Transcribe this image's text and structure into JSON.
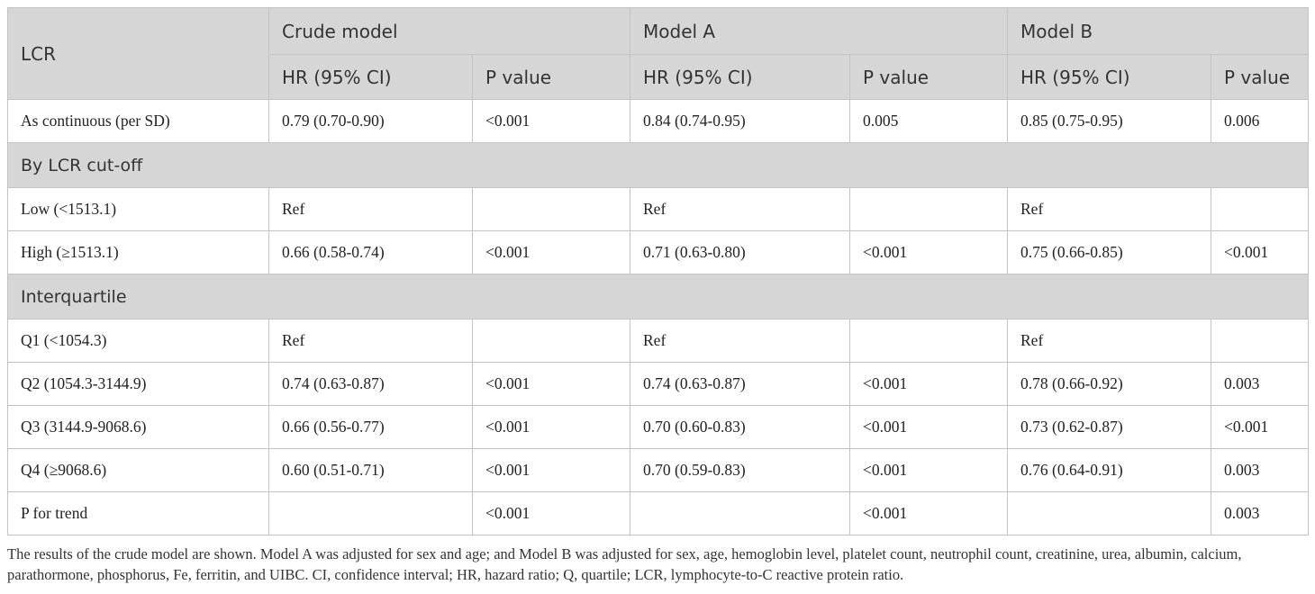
{
  "table": {
    "header": {
      "row1": [
        "LCR",
        "Crude model",
        "Model A",
        "Model B"
      ],
      "row2": [
        "HR (95% CI)",
        "P value",
        "HR (95% CI)",
        "P value",
        "HR (95% CI)",
        "P value"
      ]
    },
    "rows": [
      {
        "cells": [
          "As continuous (per SD)",
          "0.79 (0.70-0.90)",
          "<0.001",
          "0.84 (0.74-0.95)",
          "0.005",
          "0.85 (0.75-0.95)",
          "0.006"
        ]
      },
      {
        "section": "By LCR cut-off"
      },
      {
        "cells": [
          "Low (<1513.1)",
          "Ref",
          null,
          "Ref",
          null,
          "Ref",
          null
        ]
      },
      {
        "cells": [
          "High (≥1513.1)",
          "0.66 (0.58-0.74)",
          "<0.001",
          "0.71 (0.63-0.80)",
          "<0.001",
          "0.75 (0.66-0.85)",
          "<0.001"
        ]
      },
      {
        "section": "Interquartile"
      },
      {
        "cells": [
          "Q1 (<1054.3)",
          "Ref",
          null,
          "Ref",
          null,
          "Ref",
          null
        ]
      },
      {
        "cells": [
          "Q2 (1054.3-3144.9)",
          "0.74 (0.63-0.87)",
          "<0.001",
          "0.74 (0.63-0.87)",
          "<0.001",
          "0.78 (0.66-0.92)",
          "0.003"
        ]
      },
      {
        "cells": [
          "Q3 (3144.9-9068.6)",
          "0.66 (0.56-0.77)",
          "<0.001",
          "0.70 (0.60-0.83)",
          "<0.001",
          "0.73 (0.62-0.87)",
          "<0.001"
        ]
      },
      {
        "cells": [
          "Q4 (≥9068.6)",
          "0.60 (0.51-0.71)",
          "<0.001",
          "0.70 (0.59-0.83)",
          "<0.001",
          "0.76 (0.64-0.91)",
          "0.003"
        ]
      },
      {
        "cells": [
          "P for trend",
          null,
          "<0.001",
          null,
          "<0.001",
          null,
          "0.003"
        ]
      }
    ],
    "footnote": "The results of the crude model are shown. Model A was adjusted for sex and age; and Model B was adjusted for sex, age, hemoglobin level, platelet count, neutrophil count, creatinine, urea, albumin, calcium, parathormone, phosphorus, Fe, ferritin, and UIBC. CI, confidence interval; HR, hazard ratio; Q, quartile; LCR, lymphocyte-to-C reactive protein ratio."
  }
}
